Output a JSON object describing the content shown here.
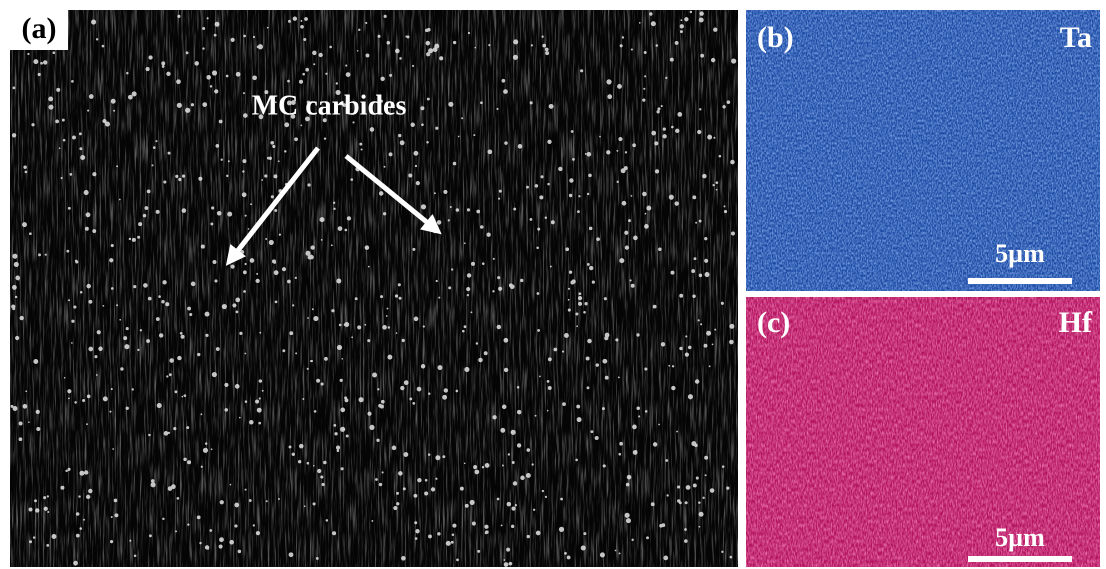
{
  "panels": [
    {
      "label": "(a)",
      "annotation": "MC carbides"
    },
    {
      "label": "(b)",
      "element": "Ta",
      "scale_bar": "5µm"
    },
    {
      "label": "(c)",
      "element": "Hf",
      "scale_bar": "5µm"
    }
  ]
}
